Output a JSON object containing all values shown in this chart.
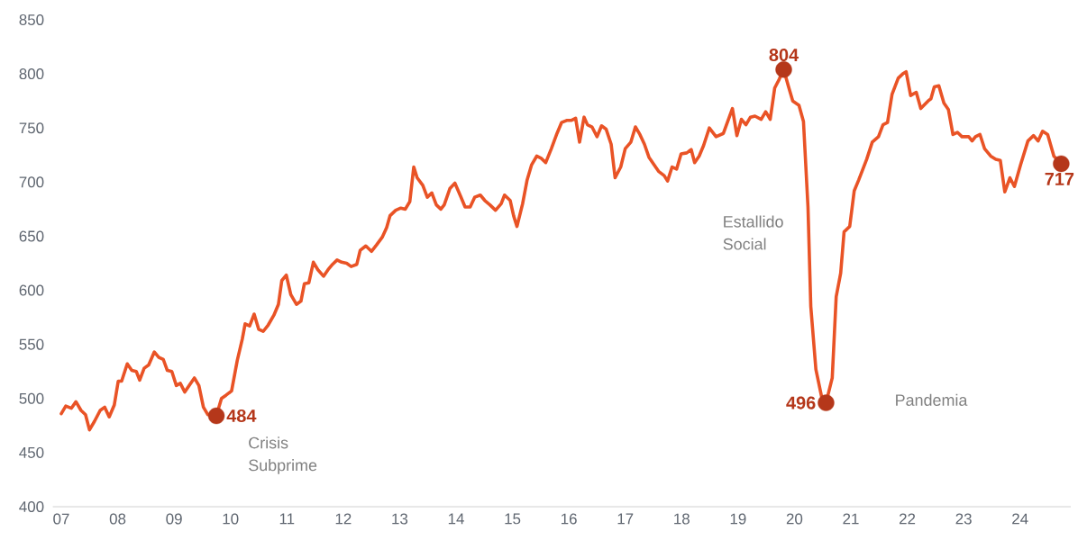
{
  "chart_data": {
    "type": "line",
    "xlim": [
      2006.85,
      2024.9
    ],
    "ylim": [
      400,
      850
    ],
    "xticks": [
      {
        "value": 2007,
        "label": "07"
      },
      {
        "value": 2008,
        "label": "08"
      },
      {
        "value": 2009,
        "label": "09"
      },
      {
        "value": 2010,
        "label": "10"
      },
      {
        "value": 2011,
        "label": "11"
      },
      {
        "value": 2012,
        "label": "12"
      },
      {
        "value": 2013,
        "label": "13"
      },
      {
        "value": 2014,
        "label": "14"
      },
      {
        "value": 2015,
        "label": "15"
      },
      {
        "value": 2016,
        "label": "16"
      },
      {
        "value": 2017,
        "label": "17"
      },
      {
        "value": 2018,
        "label": "18"
      },
      {
        "value": 2019,
        "label": "19"
      },
      {
        "value": 2020,
        "label": "20"
      },
      {
        "value": 2021,
        "label": "21"
      },
      {
        "value": 2022,
        "label": "22"
      },
      {
        "value": 2023,
        "label": "23"
      },
      {
        "value": 2024,
        "label": "24"
      }
    ],
    "yticks": [
      400,
      450,
      500,
      550,
      600,
      650,
      700,
      750,
      800,
      850
    ],
    "series": [
      {
        "color": "#e95326",
        "x": [
          2007.0,
          2007.08,
          2007.18,
          2007.26,
          2007.35,
          2007.43,
          2007.5,
          2007.59,
          2007.69,
          2007.77,
          2007.85,
          2007.94,
          2008.01,
          2008.07,
          2008.17,
          2008.25,
          2008.33,
          2008.39,
          2008.47,
          2008.55,
          2008.65,
          2008.73,
          2008.81,
          2008.88,
          2008.96,
          2009.04,
          2009.11,
          2009.19,
          2009.28,
          2009.36,
          2009.44,
          2009.52,
          2009.6,
          2009.75,
          2009.84,
          2009.92,
          2010.02,
          2010.12,
          2010.21,
          2010.26,
          2010.34,
          2010.42,
          2010.5,
          2010.58,
          2010.67,
          2010.77,
          2010.85,
          2010.91,
          2010.99,
          2011.07,
          2011.17,
          2011.25,
          2011.31,
          2011.39,
          2011.47,
          2011.55,
          2011.65,
          2011.73,
          2011.81,
          2011.89,
          2011.97,
          2012.06,
          2012.14,
          2012.24,
          2012.3,
          2012.4,
          2012.5,
          2012.59,
          2012.69,
          2012.77,
          2012.83,
          2012.93,
          2013.02,
          2013.1,
          2013.18,
          2013.25,
          2013.31,
          2013.41,
          2013.49,
          2013.57,
          2013.65,
          2013.73,
          2013.79,
          2013.89,
          2013.98,
          2014.08,
          2014.16,
          2014.25,
          2014.33,
          2014.43,
          2014.51,
          2014.6,
          2014.7,
          2014.8,
          2014.86,
          2014.96,
          2015.02,
          2015.08,
          2015.18,
          2015.26,
          2015.34,
          2015.43,
          2015.51,
          2015.59,
          2015.69,
          2015.79,
          2015.87,
          2015.96,
          2016.04,
          2016.12,
          2016.19,
          2016.27,
          2016.33,
          2016.41,
          2016.5,
          2016.58,
          2016.66,
          2016.75,
          2016.82,
          2016.92,
          2017.0,
          2017.1,
          2017.18,
          2017.26,
          2017.34,
          2017.42,
          2017.51,
          2017.59,
          2017.69,
          2017.75,
          2017.83,
          2017.91,
          2017.99,
          2018.09,
          2018.17,
          2018.23,
          2018.31,
          2018.39,
          2018.49,
          2018.61,
          2018.74,
          2018.9,
          2018.98,
          2019.06,
          2019.14,
          2019.22,
          2019.3,
          2019.41,
          2019.49,
          2019.57,
          2019.65,
          2019.73,
          2019.81,
          2019.89,
          2019.97,
          2020.08,
          2020.16,
          2020.24,
          2020.29,
          2020.38,
          2020.48,
          2020.56,
          2020.67,
          2020.74,
          2020.82,
          2020.88,
          2020.98,
          2021.06,
          2021.14,
          2021.28,
          2021.38,
          2021.49,
          2021.57,
          2021.65,
          2021.73,
          2021.84,
          2021.92,
          2021.98,
          2022.06,
          2022.16,
          2022.24,
          2022.37,
          2022.42,
          2022.48,
          2022.56,
          2022.65,
          2022.73,
          2022.81,
          2022.89,
          2022.97,
          2023.09,
          2023.15,
          2023.21,
          2023.29,
          2023.37,
          2023.48,
          2023.57,
          2023.65,
          2023.73,
          2023.82,
          2023.9,
          2024.01,
          2024.14,
          2024.24,
          2024.32,
          2024.4,
          2024.49,
          2024.6,
          2024.73
        ],
        "values": [
          486,
          493,
          491,
          497,
          489,
          485,
          471,
          479,
          489,
          492,
          483,
          494,
          516,
          516,
          532,
          526,
          525,
          517,
          528,
          531,
          543,
          538,
          536,
          526,
          525,
          512,
          514,
          506,
          513,
          519,
          512,
          492,
          485,
          484,
          500,
          503,
          507,
          535,
          555,
          569,
          567,
          578,
          564,
          562,
          568,
          577,
          587,
          609,
          614,
          596,
          587,
          590,
          606,
          607,
          626,
          619,
          613,
          619,
          624,
          628,
          626,
          625,
          622,
          624,
          637,
          641,
          636,
          642,
          649,
          658,
          669,
          674,
          676,
          675,
          682,
          714,
          704,
          697,
          686,
          690,
          679,
          675,
          679,
          694,
          699,
          687,
          677,
          677,
          686,
          688,
          683,
          679,
          674,
          680,
          688,
          683,
          669,
          659,
          680,
          702,
          716,
          724,
          722,
          718,
          731,
          745,
          755,
          757,
          757,
          759,
          737,
          760,
          753,
          751,
          742,
          752,
          749,
          735,
          704,
          714,
          731,
          737,
          751,
          744,
          735,
          723,
          716,
          710,
          706,
          701,
          714,
          712,
          726,
          727,
          730,
          718,
          724,
          734,
          750,
          742,
          745,
          768,
          743,
          758,
          753,
          760,
          761,
          758,
          765,
          758,
          787,
          795,
          804,
          789,
          775,
          771,
          756,
          677,
          585,
          527,
          502,
          496,
          519,
          594,
          616,
          654,
          659,
          692,
          702,
          721,
          737,
          742,
          753,
          755,
          781,
          796,
          800,
          802,
          780,
          783,
          768,
          775,
          777,
          788,
          789,
          773,
          767,
          744,
          746,
          742,
          742,
          738,
          742,
          744,
          731,
          724,
          721,
          720,
          691,
          704,
          696,
          716,
          738,
          743,
          738,
          747,
          744,
          724,
          717
        ]
      },
      {
        "type": "scatter",
        "color": "#b5371a",
        "x": [
          2009.75,
          2019.81,
          2020.56,
          2024.73
        ],
        "values": [
          484,
          804,
          496,
          717
        ],
        "value_labels": [
          "484",
          "804",
          "496",
          "717"
        ]
      }
    ],
    "annotations": [
      "Crisis Subprime",
      "Estallido Social",
      "Pandemia"
    ]
  }
}
